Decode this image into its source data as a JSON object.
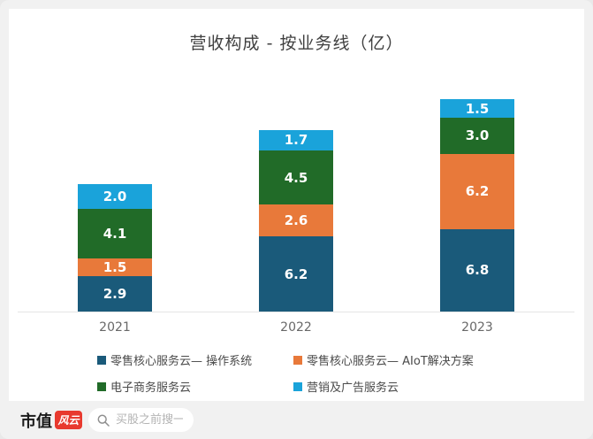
{
  "title": "营收构成 - 按业务线（亿）",
  "chart_data": {
    "type": "bar",
    "stacked": true,
    "title": "营收构成 - 按业务线（亿）",
    "categories": [
      "2021",
      "2022",
      "2023"
    ],
    "series": [
      {
        "name": "零售核心服务云— 操作系统",
        "color": "#1a5a7a",
        "values": [
          2.9,
          6.2,
          6.8
        ]
      },
      {
        "name": "零售核心服务云— AIoT解决方案",
        "color": "#e8793a",
        "values": [
          1.5,
          2.6,
          6.2
        ]
      },
      {
        "name": "电子商务服务云",
        "color": "#216b28",
        "values": [
          4.1,
          4.5,
          3.0
        ]
      },
      {
        "name": "营销及广告服务云",
        "color": "#1aa3da",
        "values": [
          2.0,
          1.7,
          1.5
        ]
      }
    ],
    "totals": [
      10.5,
      15.0,
      17.5
    ],
    "value_labels": true,
    "legend_position": "bottom",
    "xlabel": "",
    "ylabel": "",
    "grid": false
  },
  "footer": {
    "brand_text": "市值",
    "brand_badge": "风云",
    "brand_color": "#e8392e",
    "search_placeholder": "买股之前搜一搜"
  }
}
